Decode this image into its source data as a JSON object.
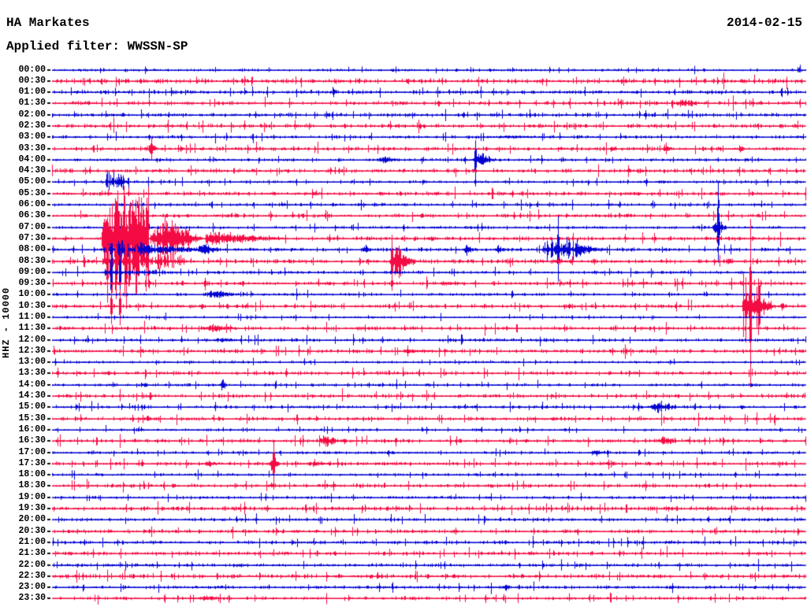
{
  "header": {
    "station": "HA Markates",
    "filter_label": "Applied filter: WWSSN-SP",
    "date": "2014-02-15"
  },
  "axis": {
    "scale_label": "HHZ - 10000",
    "first_row": "00:00",
    "last_row": "23:30"
  },
  "colors": {
    "trace_blue": "#0000d2",
    "trace_red": "#f50b43",
    "text": "#000000",
    "background": "#ffffff"
  },
  "chart_data": {
    "type": "line",
    "subtype": "helicorder",
    "title": "HA Markates",
    "date": "2014-02-15",
    "filter": "WWSSN-SP",
    "channel_scale": "HHZ - 10000",
    "minutes_per_row": 30,
    "amplitude_units": "px",
    "rows": [
      {
        "time": "00:00",
        "color": "blue",
        "noise": 1.4,
        "events": []
      },
      {
        "time": "00:30",
        "color": "red",
        "noise": 2.4,
        "events": []
      },
      {
        "time": "01:00",
        "color": "blue",
        "noise": 1.9,
        "events": []
      },
      {
        "time": "01:30",
        "color": "red",
        "noise": 2.0,
        "events": [
          {
            "kind": "spindle",
            "m0": 24.6,
            "m1": 26.2,
            "amp": 6
          }
        ]
      },
      {
        "time": "02:00",
        "color": "blue",
        "noise": 1.9,
        "events": []
      },
      {
        "time": "02:30",
        "color": "red",
        "noise": 2.0,
        "events": []
      },
      {
        "time": "03:00",
        "color": "blue",
        "noise": 1.6,
        "events": [
          {
            "kind": "spindle",
            "m0": 17.3,
            "m1": 20.0,
            "amp": 2.5
          }
        ]
      },
      {
        "time": "03:30",
        "color": "red",
        "noise": 1.9,
        "events": [
          {
            "kind": "spike",
            "m0": 3.95,
            "m1": 3.95,
            "amp": 13
          },
          {
            "kind": "diamond",
            "m0": 3.6,
            "m1": 4.3,
            "amp": 7
          },
          {
            "kind": "diamond",
            "m0": 22.1,
            "m1": 22.5,
            "amp": 5
          },
          {
            "kind": "diamond",
            "m0": 24.2,
            "m1": 24.7,
            "amp": 7
          },
          {
            "kind": "diamond",
            "m0": 27.2,
            "m1": 27.6,
            "amp": 5
          }
        ]
      },
      {
        "time": "04:00",
        "color": "blue",
        "noise": 1.5,
        "events": [
          {
            "kind": "spindle",
            "m0": 12.8,
            "m1": 14.1,
            "amp": 5
          },
          {
            "kind": "spike",
            "m0": 16.85,
            "m1": 16.85,
            "amp": 30
          },
          {
            "kind": "spindle",
            "m0": 16.7,
            "m1": 17.8,
            "amp": 10
          },
          {
            "kind": "diamond",
            "m0": 7.7,
            "m1": 7.95,
            "amp": 3
          }
        ]
      },
      {
        "time": "04:30",
        "color": "red",
        "noise": 2.0,
        "events": [
          {
            "kind": "spike",
            "m0": 11.42,
            "m1": 11.42,
            "amp": 4
          }
        ]
      },
      {
        "time": "05:00",
        "color": "blue",
        "noise": 1.5,
        "events": [
          {
            "kind": "burst",
            "m0": 2.1,
            "m1": 3.05,
            "amp": 12
          },
          {
            "kind": "spike",
            "m0": 23.66,
            "m1": 23.66,
            "amp": 5
          }
        ]
      },
      {
        "time": "05:30",
        "color": "red",
        "noise": 2.0,
        "events": [
          {
            "kind": "spike",
            "m0": 18.33,
            "m1": 18.33,
            "amp": 5
          },
          {
            "kind": "spike",
            "m0": 18.73,
            "m1": 18.73,
            "amp": 4
          }
        ]
      },
      {
        "time": "06:00",
        "color": "blue",
        "noise": 1.7,
        "events": []
      },
      {
        "time": "06:30",
        "color": "red",
        "noise": 1.9,
        "events": [
          {
            "kind": "spike",
            "m0": 18.64,
            "m1": 18.64,
            "amp": 4
          }
        ]
      },
      {
        "time": "07:00",
        "color": "blue",
        "noise": 1.5,
        "events": [
          {
            "kind": "spike",
            "m0": 26.52,
            "m1": 26.52,
            "amp": 55
          },
          {
            "kind": "spindle",
            "m0": 26.25,
            "m1": 26.95,
            "amp": 13
          }
        ]
      },
      {
        "time": "07:30",
        "color": "red",
        "noise": 2.0,
        "events": [
          {
            "kind": "burst",
            "m0": 1.95,
            "m1": 3.85,
            "amp": 88
          },
          {
            "kind": "spindle",
            "m0": 3.85,
            "m1": 6.1,
            "amp": 32
          },
          {
            "kind": "coda",
            "m0": 6.1,
            "m1": 10.2,
            "amp": 11
          }
        ]
      },
      {
        "time": "08:00",
        "color": "blue",
        "noise": 1.8,
        "events": [
          {
            "kind": "burst",
            "m0": 1.95,
            "m1": 3.65,
            "amp": 13
          },
          {
            "kind": "coda",
            "m0": 3.65,
            "m1": 7.4,
            "amp": 8
          },
          {
            "kind": "spindle",
            "m0": 5.6,
            "m1": 7.0,
            "amp": 8
          },
          {
            "kind": "spindle",
            "m0": 12.35,
            "m1": 12.8,
            "amp": 8
          },
          {
            "kind": "spindle",
            "m0": 16.35,
            "m1": 16.85,
            "amp": 9
          },
          {
            "kind": "spindle",
            "m0": 17.6,
            "m1": 18.15,
            "amp": 7
          },
          {
            "kind": "burst",
            "m0": 19.5,
            "m1": 20.9,
            "amp": 16
          },
          {
            "kind": "spike",
            "m0": 20.15,
            "m1": 20.15,
            "amp": 45
          },
          {
            "kind": "coda",
            "m0": 20.9,
            "m1": 22.5,
            "amp": 9
          }
        ]
      },
      {
        "time": "08:30",
        "color": "red",
        "noise": 2.1,
        "events": [
          {
            "kind": "burst",
            "m0": 1.9,
            "m1": 5.3,
            "amp": 10
          },
          {
            "kind": "spike",
            "m0": 2.2,
            "m1": 2.2,
            "amp": 55
          },
          {
            "kind": "spike",
            "m0": 2.55,
            "m1": 2.55,
            "amp": 58
          },
          {
            "kind": "spike",
            "m0": 2.95,
            "m1": 2.95,
            "amp": 52
          },
          {
            "kind": "spike",
            "m0": 3.35,
            "m1": 3.35,
            "amp": 48
          },
          {
            "kind": "spike",
            "m0": 13.53,
            "m1": 13.53,
            "amp": 38
          },
          {
            "kind": "spindle",
            "m0": 13.4,
            "m1": 14.6,
            "amp": 22
          },
          {
            "kind": "spindle",
            "m0": 20.0,
            "m1": 20.5,
            "amp": 6
          },
          {
            "kind": "diamond",
            "m0": 26.75,
            "m1": 27.1,
            "amp": 7
          }
        ]
      },
      {
        "time": "09:00",
        "color": "blue",
        "noise": 1.6,
        "events": [
          {
            "kind": "burst",
            "m0": 1.9,
            "m1": 4.5,
            "amp": 4
          },
          {
            "kind": "spike",
            "m0": 2.35,
            "m1": 2.35,
            "amp": 42
          },
          {
            "kind": "spike",
            "m0": 2.7,
            "m1": 2.7,
            "amp": 40
          }
        ]
      },
      {
        "time": "09:30",
        "color": "red",
        "noise": 2.0,
        "events": [
          {
            "kind": "spike",
            "m0": 6.09,
            "m1": 6.09,
            "amp": 8
          },
          {
            "kind": "spindle",
            "m0": 15.2,
            "m1": 16.6,
            "amp": 3
          },
          {
            "kind": "spike",
            "m0": 13.53,
            "m1": 13.53,
            "amp": 9
          }
        ]
      },
      {
        "time": "10:00",
        "color": "blue",
        "noise": 1.5,
        "events": [
          {
            "kind": "spindle",
            "m0": 5.9,
            "m1": 7.8,
            "amp": 6
          },
          {
            "kind": "diamond",
            "m0": 15.4,
            "m1": 15.6,
            "amp": 3
          }
        ]
      },
      {
        "time": "10:30",
        "color": "red",
        "noise": 2.0,
        "events": [
          {
            "kind": "spike",
            "m0": 2.35,
            "m1": 2.35,
            "amp": 24
          },
          {
            "kind": "spike",
            "m0": 2.7,
            "m1": 2.7,
            "amp": 22
          },
          {
            "kind": "burst",
            "m0": 27.45,
            "m1": 28.2,
            "amp": 45
          },
          {
            "kind": "spike",
            "m0": 27.8,
            "m1": 27.8,
            "amp": 98
          },
          {
            "kind": "coda",
            "m0": 28.2,
            "m1": 28.95,
            "amp": 16
          },
          {
            "kind": "spindle",
            "m0": 28.95,
            "m1": 29.4,
            "amp": 7
          }
        ]
      },
      {
        "time": "11:00",
        "color": "blue",
        "noise": 1.2,
        "events": []
      },
      {
        "time": "11:30",
        "color": "red",
        "noise": 1.9,
        "events": [
          {
            "kind": "spindle",
            "m0": 5.75,
            "m1": 7.75,
            "amp": 5
          },
          {
            "kind": "spike",
            "m0": 27.8,
            "m1": 27.8,
            "amp": 22
          }
        ]
      },
      {
        "time": "12:00",
        "color": "blue",
        "noise": 1.7,
        "events": [
          {
            "kind": "spindle",
            "m0": 6.2,
            "m1": 8.0,
            "amp": 3
          }
        ]
      },
      {
        "time": "12:30",
        "color": "red",
        "noise": 1.9,
        "events": [
          {
            "kind": "spindle",
            "m0": 13.6,
            "m1": 15.6,
            "amp": 3
          }
        ]
      },
      {
        "time": "13:00",
        "color": "blue",
        "noise": 1.3,
        "events": []
      },
      {
        "time": "13:30",
        "color": "red",
        "noise": 1.9,
        "events": []
      },
      {
        "time": "14:00",
        "color": "blue",
        "noise": 1.5,
        "events": [
          {
            "kind": "diamond",
            "m0": 3.5,
            "m1": 3.85,
            "amp": 6
          },
          {
            "kind": "diamond",
            "m0": 6.6,
            "m1": 7.0,
            "amp": 9
          }
        ]
      },
      {
        "time": "14:30",
        "color": "red",
        "noise": 1.9,
        "events": []
      },
      {
        "time": "15:00",
        "color": "blue",
        "noise": 1.6,
        "events": [
          {
            "kind": "spindle",
            "m0": 23.7,
            "m1": 25.2,
            "amp": 8
          },
          {
            "kind": "spindle",
            "m0": 27.3,
            "m1": 27.75,
            "amp": 4
          }
        ]
      },
      {
        "time": "15:30",
        "color": "red",
        "noise": 1.9,
        "events": [
          {
            "kind": "diamond",
            "m0": 3.65,
            "m1": 4.0,
            "amp": 6
          }
        ]
      },
      {
        "time": "16:00",
        "color": "blue",
        "noise": 1.3,
        "events": []
      },
      {
        "time": "16:30",
        "color": "red",
        "noise": 1.9,
        "events": [
          {
            "kind": "spindle",
            "m0": 10.55,
            "m1": 11.6,
            "amp": 10
          },
          {
            "kind": "spindle",
            "m0": 24.05,
            "m1": 25.1,
            "amp": 7
          }
        ]
      },
      {
        "time": "17:00",
        "color": "blue",
        "noise": 1.5,
        "events": [
          {
            "kind": "spindle",
            "m0": 21.3,
            "m1": 22.3,
            "amp": 5
          }
        ]
      },
      {
        "time": "17:30",
        "color": "red",
        "noise": 1.9,
        "events": [
          {
            "kind": "spike",
            "m0": 8.82,
            "m1": 8.82,
            "amp": 28
          },
          {
            "kind": "spindle",
            "m0": 8.6,
            "m1": 9.1,
            "amp": 12
          },
          {
            "kind": "spindle",
            "m0": 5.9,
            "m1": 7.05,
            "amp": 4
          },
          {
            "kind": "spindle",
            "m0": 10.0,
            "m1": 11.45,
            "amp": 4
          }
        ]
      },
      {
        "time": "18:00",
        "color": "blue",
        "noise": 1.4,
        "events": []
      },
      {
        "time": "18:30",
        "color": "red",
        "noise": 2.0,
        "events": []
      },
      {
        "time": "19:00",
        "color": "blue",
        "noise": 1.5,
        "events": [
          {
            "kind": "diamond",
            "m0": 14.2,
            "m1": 14.45,
            "amp": 3
          }
        ]
      },
      {
        "time": "19:30",
        "color": "red",
        "noise": 2.1,
        "events": []
      },
      {
        "time": "20:00",
        "color": "blue",
        "noise": 1.7,
        "events": []
      },
      {
        "time": "20:30",
        "color": "red",
        "noise": 1.9,
        "events": [
          {
            "kind": "diamond",
            "m0": 10.3,
            "m1": 10.7,
            "amp": 3
          }
        ]
      },
      {
        "time": "21:00",
        "color": "blue",
        "noise": 1.9,
        "events": []
      },
      {
        "time": "21:30",
        "color": "red",
        "noise": 2.0,
        "events": [
          {
            "kind": "spike",
            "m0": 22.6,
            "m1": 22.6,
            "amp": 5
          }
        ]
      },
      {
        "time": "22:00",
        "color": "blue",
        "noise": 1.7,
        "events": []
      },
      {
        "time": "22:30",
        "color": "red",
        "noise": 2.2,
        "events": []
      },
      {
        "time": "23:00",
        "color": "blue",
        "noise": 1.7,
        "events": [
          {
            "kind": "diamond",
            "m0": 17.9,
            "m1": 18.3,
            "amp": 5
          }
        ]
      },
      {
        "time": "23:30",
        "color": "red",
        "noise": 1.7,
        "events": [
          {
            "kind": "spindle",
            "m0": 5.7,
            "m1": 7.0,
            "amp": 5
          }
        ]
      }
    ]
  }
}
